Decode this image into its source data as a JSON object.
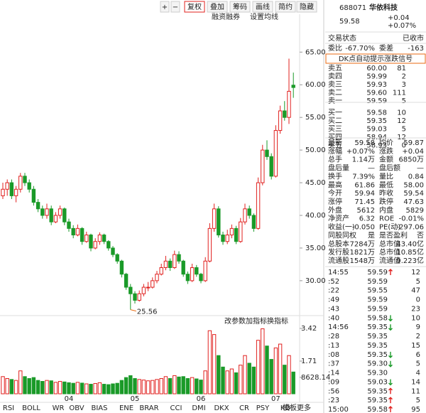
{
  "toolbar": {
    "buttons": [
      "+",
      "−",
      "复权",
      "叠加",
      "筹码",
      "画线",
      "简约",
      "隐藏"
    ],
    "sub_buttons": [
      "融资融券",
      "设置均线"
    ]
  },
  "chart_data": {
    "type": "candlestick",
    "categories": [
      null,
      null,
      null,
      null,
      null,
      null,
      null,
      null,
      null,
      null,
      null,
      null,
      null,
      null,
      null,
      "04",
      null,
      null,
      null,
      null,
      null,
      null,
      null,
      null,
      null,
      null,
      null,
      null,
      null,
      null,
      "05",
      null,
      null,
      null,
      null,
      null,
      null,
      null,
      null,
      null,
      null,
      null,
      null,
      null,
      null,
      "06",
      null,
      null,
      null,
      null,
      null,
      null,
      null,
      null,
      null,
      null,
      null,
      null,
      null,
      null,
      null,
      null,
      "07",
      null,
      null,
      null,
      null
    ],
    "candles": [
      [
        43,
        45,
        42.5,
        44
      ],
      [
        44,
        45.5,
        43,
        45
      ],
      [
        45,
        45.5,
        42.5,
        43
      ],
      [
        43,
        44.5,
        42,
        44
      ],
      [
        44,
        46.5,
        43.5,
        46
      ],
      [
        46,
        46.5,
        44.5,
        45
      ],
      [
        45,
        45.5,
        43.5,
        44
      ],
      [
        44,
        44.5,
        41.5,
        42
      ],
      [
        42,
        42.5,
        40.5,
        41
      ],
      [
        41,
        41.5,
        39.5,
        40
      ],
      [
        40,
        41.8,
        39.5,
        41
      ],
      [
        41,
        41.5,
        38.5,
        39
      ],
      [
        39,
        40.5,
        38.8,
        40
      ],
      [
        40,
        41.5,
        39.5,
        41
      ],
      [
        41,
        41.2,
        38.5,
        39
      ],
      [
        39,
        39.5,
        37.5,
        38
      ],
      [
        38,
        38.5,
        36.5,
        37
      ],
      [
        37,
        38.6,
        36.8,
        38
      ],
      [
        38,
        38.2,
        35.5,
        36
      ],
      [
        36,
        37.5,
        35.8,
        37
      ],
      [
        37,
        37.2,
        34.5,
        35
      ],
      [
        35,
        36.5,
        34.8,
        36
      ],
      [
        36,
        37.4,
        35.5,
        37
      ],
      [
        37,
        37.2,
        35.6,
        36
      ],
      [
        36,
        36.2,
        34.6,
        35
      ],
      [
        35,
        35.3,
        33.6,
        34
      ],
      [
        34,
        34.2,
        32.6,
        33
      ],
      [
        33,
        33.2,
        30.5,
        31
      ],
      [
        31,
        31.2,
        28.6,
        29
      ],
      [
        29,
        29.5,
        25.56,
        28
      ],
      [
        28,
        28.4,
        26.5,
        27
      ],
      [
        27,
        28.5,
        26.8,
        28
      ],
      [
        28,
        29.5,
        27.6,
        29
      ],
      [
        29,
        29.8,
        28.4,
        29
      ],
      [
        29,
        30.5,
        28.8,
        30
      ],
      [
        30,
        31.5,
        29.6,
        31
      ],
      [
        31,
        32.6,
        30.8,
        32
      ],
      [
        32,
        33.8,
        31.6,
        33
      ],
      [
        33,
        33.4,
        31.5,
        32
      ],
      [
        32,
        34.6,
        31.8,
        34
      ],
      [
        34,
        34.5,
        32.6,
        33
      ],
      [
        33,
        33.2,
        30.6,
        31
      ],
      [
        31,
        31.4,
        29.5,
        30
      ],
      [
        30,
        32.6,
        29.8,
        32
      ],
      [
        32,
        32.4,
        30.6,
        31
      ],
      [
        31,
        31.2,
        29.6,
        30
      ],
      [
        30,
        33.6,
        29.8,
        33
      ],
      [
        33,
        38.8,
        32.8,
        38
      ],
      [
        38,
        41.8,
        37.5,
        41
      ],
      [
        41,
        41.4,
        36.6,
        37
      ],
      [
        37,
        37.5,
        35.5,
        36
      ],
      [
        36,
        37.8,
        35.6,
        37
      ],
      [
        37,
        38.6,
        36.5,
        38
      ],
      [
        38,
        38.4,
        35.6,
        36
      ],
      [
        36,
        39.6,
        35.8,
        39
      ],
      [
        39,
        41.8,
        38.6,
        41
      ],
      [
        41,
        41.5,
        39.5,
        40
      ],
      [
        40,
        40.3,
        37.5,
        38
      ],
      [
        38,
        45.8,
        37.8,
        45
      ],
      [
        45,
        50.8,
        44.6,
        50
      ],
      [
        50,
        51.5,
        48.5,
        49
      ],
      [
        49,
        49.5,
        45.5,
        46
      ],
      [
        46,
        53.8,
        45.8,
        53
      ],
      [
        53,
        56.8,
        52.5,
        56
      ],
      [
        56,
        57.5,
        54.5,
        55
      ],
      [
        55,
        64,
        54,
        59
      ],
      [
        59.94,
        61.86,
        58,
        59.58
      ]
    ],
    "low_index": 29,
    "ylim": [
      24,
      70.8
    ],
    "yticks": [
      {
        "value": 30,
        "label": "30.00"
      },
      {
        "value": 35,
        "label": "35.00"
      },
      {
        "value": 40,
        "label": "40.00"
      },
      {
        "value": 45,
        "label": "45.00"
      },
      {
        "value": 50,
        "label": "50.00"
      },
      {
        "value": 55,
        "label": "55.00"
      },
      {
        "value": 60,
        "label": "60.00"
      },
      {
        "value": 65,
        "label": "65.00"
      }
    ],
    "volumes": [
      9000,
      8000,
      7500,
      7000,
      12000,
      9000,
      8000,
      8500,
      7000,
      6500,
      7000,
      6800,
      6000,
      6500,
      6200,
      5800,
      5500,
      6000,
      5600,
      5200,
      5000,
      5400,
      5800,
      5000,
      4800,
      5200,
      5500,
      7000,
      8500,
      9500,
      8000,
      7500,
      7200,
      6800,
      7000,
      7500,
      8000,
      9000,
      8000,
      9500,
      8800,
      9000,
      8000,
      8500,
      7800,
      7200,
      12000,
      33000,
      31000,
      20000,
      14000,
      12000,
      13000,
      11000,
      15000,
      20000,
      16000,
      14000,
      28000,
      34000,
      25000,
      18000,
      24000,
      26000,
      15000,
      20000,
      11400
    ],
    "vol_ylim": [
      0,
      34200
    ],
    "vol_ticks": [
      {
        "value": 34200,
        "label": "3.42"
      },
      {
        "value": 17100,
        "label": "1.71"
      },
      8628.14
    ],
    "up_color": "#e0201e",
    "down_color": "#1a9a28",
    "indicator_buttons": [
      "改参数",
      "加指标",
      "换指标"
    ],
    "tabs": [
      "RSI",
      "BOLL",
      "WR",
      "OBV",
      "BIAS",
      "ENE",
      "BRAR",
      "CCI",
      "DMI",
      "DKX",
      "CR",
      "PSY",
      "KD",
      "更多",
      "模板"
    ]
  },
  "quote": {
    "code": "688071",
    "name": "华依科技",
    "price": "59.58",
    "change": "+0.04",
    "pct": "+0.07%",
    "status_label": "交易状态",
    "status": "已收市",
    "ratio_label": "委比",
    "ratio": "-67.70%",
    "diff_label": "委差",
    "diff": "-163",
    "link": "DK点自动提示涨跌信号"
  },
  "order_book": [
    {
      "label": "卖五",
      "price": "60.00",
      "vol": "81",
      "color": "r"
    },
    {
      "label": "卖四",
      "price": "59.99",
      "vol": "2",
      "color": "r"
    },
    {
      "label": "卖三",
      "price": "59.93",
      "vol": "3",
      "color": "r"
    },
    {
      "label": "卖二",
      "price": "59.60",
      "vol": "111",
      "color": "r"
    },
    {
      "label": "卖一",
      "price": "59.59",
      "vol": "5",
      "color": "r"
    },
    {
      "label": "买一",
      "price": "59.58",
      "vol": "10",
      "color": "r"
    },
    {
      "label": "买二",
      "price": "59.35",
      "vol": "12",
      "color": "g"
    },
    {
      "label": "买三",
      "price": "59.03",
      "vol": "5",
      "color": "g"
    },
    {
      "label": "买四",
      "price": "58.94",
      "vol": "12",
      "color": "g"
    },
    {
      "label": "买五",
      "price": "58.93",
      "vol": "0",
      "color": "g"
    }
  ],
  "stats": [
    {
      "cells": [
        "最新",
        "59.58",
        "均价",
        "59.87"
      ],
      "colors": [
        "r",
        "r"
      ]
    },
    {
      "cells": [
        "涨幅",
        "+0.07%",
        "涨跌",
        "+0.04"
      ],
      "colors": [
        "r",
        "r"
      ]
    },
    {
      "cells": [
        "总手",
        "1.14万",
        "金额",
        "6850万"
      ],
      "colors": [
        "k",
        "b"
      ]
    },
    {
      "cells": [
        "盘后量",
        "—",
        "盘后额",
        "—"
      ],
      "colors": [
        "k",
        "k"
      ]
    },
    {
      "cells": [
        "换手",
        "7.39%",
        "量比",
        "0.84"
      ],
      "colors": [
        "k",
        "k"
      ]
    },
    {
      "cells": [
        "最高",
        "61.86",
        "最低",
        "58.00"
      ],
      "colors": [
        "r",
        "g"
      ]
    },
    {
      "cells": [
        "今开",
        "59.94",
        "昨收",
        "59.54"
      ],
      "colors": [
        "r",
        "k"
      ]
    },
    {
      "cells": [
        "涨停",
        "71.45",
        "跌停",
        "47.63"
      ],
      "colors": [
        "r",
        "g"
      ]
    },
    {
      "cells": [
        "外盘",
        "5612",
        "内盘",
        "5829"
      ],
      "colors": [
        "r",
        "g"
      ]
    },
    {
      "cells": [
        "净资产",
        "6.32",
        "ROE",
        "-0.01%"
      ],
      "colors": [
        "k",
        "k"
      ]
    },
    {
      "cells": [
        "收益(一)",
        "-0.050",
        "PE(动)",
        "-297.06"
      ],
      "colors": [
        "k",
        "k"
      ]
    },
    {
      "cells": [
        "同股同权",
        "是",
        "是否盈利",
        "否"
      ],
      "colors": [
        "k",
        "k"
      ]
    },
    {
      "cells": [
        "总股本",
        "7284万",
        "总市值",
        "43.40亿"
      ],
      "colors": [
        "k",
        "k"
      ]
    },
    {
      "cells": [
        "发行股",
        "1821万",
        "总市值",
        "10.85亿"
      ],
      "colors": [
        "k",
        "k"
      ]
    },
    {
      "cells": [
        "流通股",
        "1548万",
        "流通值",
        "9.223亿"
      ],
      "colors": [
        "k",
        "k"
      ]
    }
  ],
  "trades": [
    {
      "time": "14:55",
      "price": "59.59",
      "dir": "up",
      "vol": "12",
      "pc": "r",
      "vc": "r"
    },
    {
      "time": ":52",
      "price": "59.59",
      "dir": null,
      "vol": "5",
      "pc": "r",
      "vc": "r"
    },
    {
      "time": ":22",
      "price": "59.55",
      "dir": null,
      "vol": "47",
      "pc": "r",
      "vc": "g"
    },
    {
      "time": ":49",
      "price": "59.59",
      "dir": null,
      "vol": "0",
      "pc": "r",
      "vc": "g"
    },
    {
      "time": ":43",
      "price": "59.59",
      "dir": null,
      "vol": "23",
      "pc": "r",
      "vc": "r"
    },
    {
      "time": ":40",
      "price": "59.58",
      "dir": "down",
      "vol": "10",
      "pc": "r",
      "vc": "g"
    },
    {
      "time": "14:56",
      "price": "59.35",
      "dir": "down",
      "vol": "9",
      "pc": "g",
      "vc": "g"
    },
    {
      "time": ":28",
      "price": "59.35",
      "dir": null,
      "vol": "2",
      "pc": "g",
      "vc": "r"
    },
    {
      "time": ":13",
      "price": "59.35",
      "dir": null,
      "vol": "15",
      "pc": "g",
      "vc": "r"
    },
    {
      "time": ":08",
      "price": "59.35",
      "dir": "down",
      "vol": "6",
      "pc": "g",
      "vc": "g"
    },
    {
      "time": ":37",
      "price": "59.30",
      "dir": "down",
      "vol": "5",
      "pc": "g",
      "vc": "g"
    },
    {
      "time": ":14",
      "price": "59.30",
      "dir": null,
      "vol": "4",
      "pc": "g",
      "vc": "r"
    },
    {
      "time": ":09",
      "price": "59.03",
      "dir": "down",
      "vol": "14",
      "pc": "g",
      "vc": "g"
    },
    {
      "time": ":56",
      "price": "59.35",
      "dir": "up",
      "vol": "11",
      "pc": "g",
      "vc": "r"
    },
    {
      "time": ":23",
      "price": "59.35",
      "dir": "up",
      "vol": "5",
      "pc": "g",
      "vc": "r"
    },
    {
      "time": "15:00",
      "price": "59.58",
      "dir": "up",
      "vol": "95",
      "pc": "r",
      "vc": "r"
    }
  ]
}
